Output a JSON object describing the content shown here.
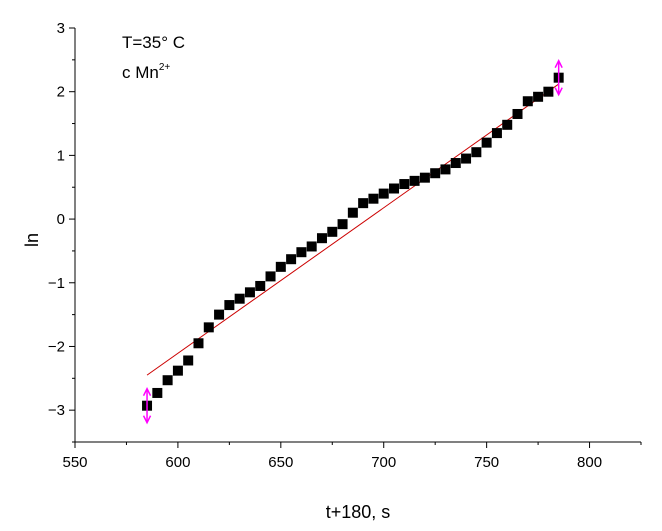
{
  "chart_data": {
    "type": "scatter",
    "xlabel": "t+180, s",
    "ylabel": "ln",
    "xlim": [
      550,
      825
    ],
    "ylim": [
      -3.5,
      3
    ],
    "xticks": [
      550,
      600,
      650,
      700,
      750,
      800
    ],
    "yticks": [
      -3,
      -2,
      -1,
      0,
      1,
      2,
      3
    ],
    "grid": false,
    "annotation": {
      "line1": "T=35° C",
      "line2_text": "c Mn",
      "line2_sup": "2+"
    },
    "series": [
      {
        "marker": "square",
        "color": "#000000",
        "x": [
          585,
          590,
          595,
          600,
          605,
          610,
          615,
          620,
          625,
          630,
          635,
          640,
          645,
          650,
          655,
          660,
          665,
          670,
          675,
          680,
          685,
          690,
          695,
          700,
          705,
          710,
          715,
          720,
          725,
          730,
          735,
          740,
          745,
          750,
          755,
          760,
          765,
          770,
          775,
          780,
          785
        ],
        "y": [
          -2.93,
          -2.73,
          -2.53,
          -2.38,
          -2.22,
          -1.95,
          -1.7,
          -1.5,
          -1.35,
          -1.25,
          -1.15,
          -1.05,
          -0.9,
          -0.75,
          -0.63,
          -0.52,
          -0.43,
          -0.3,
          -0.2,
          -0.08,
          0.1,
          0.25,
          0.32,
          0.4,
          0.48,
          0.55,
          0.6,
          0.65,
          0.72,
          0.78,
          0.88,
          0.95,
          1.05,
          1.2,
          1.35,
          1.48,
          1.65,
          1.85,
          1.92,
          2.0,
          2.22
        ]
      },
      {
        "type": "line",
        "color": "#cc0000",
        "x": [
          585,
          785
        ],
        "y": [
          -2.45,
          2.12
        ]
      }
    ],
    "error_markers": {
      "color": "#ff00ff",
      "points": [
        {
          "x": 585,
          "y": -2.93
        },
        {
          "x": 785,
          "y": 2.22
        }
      ]
    }
  }
}
